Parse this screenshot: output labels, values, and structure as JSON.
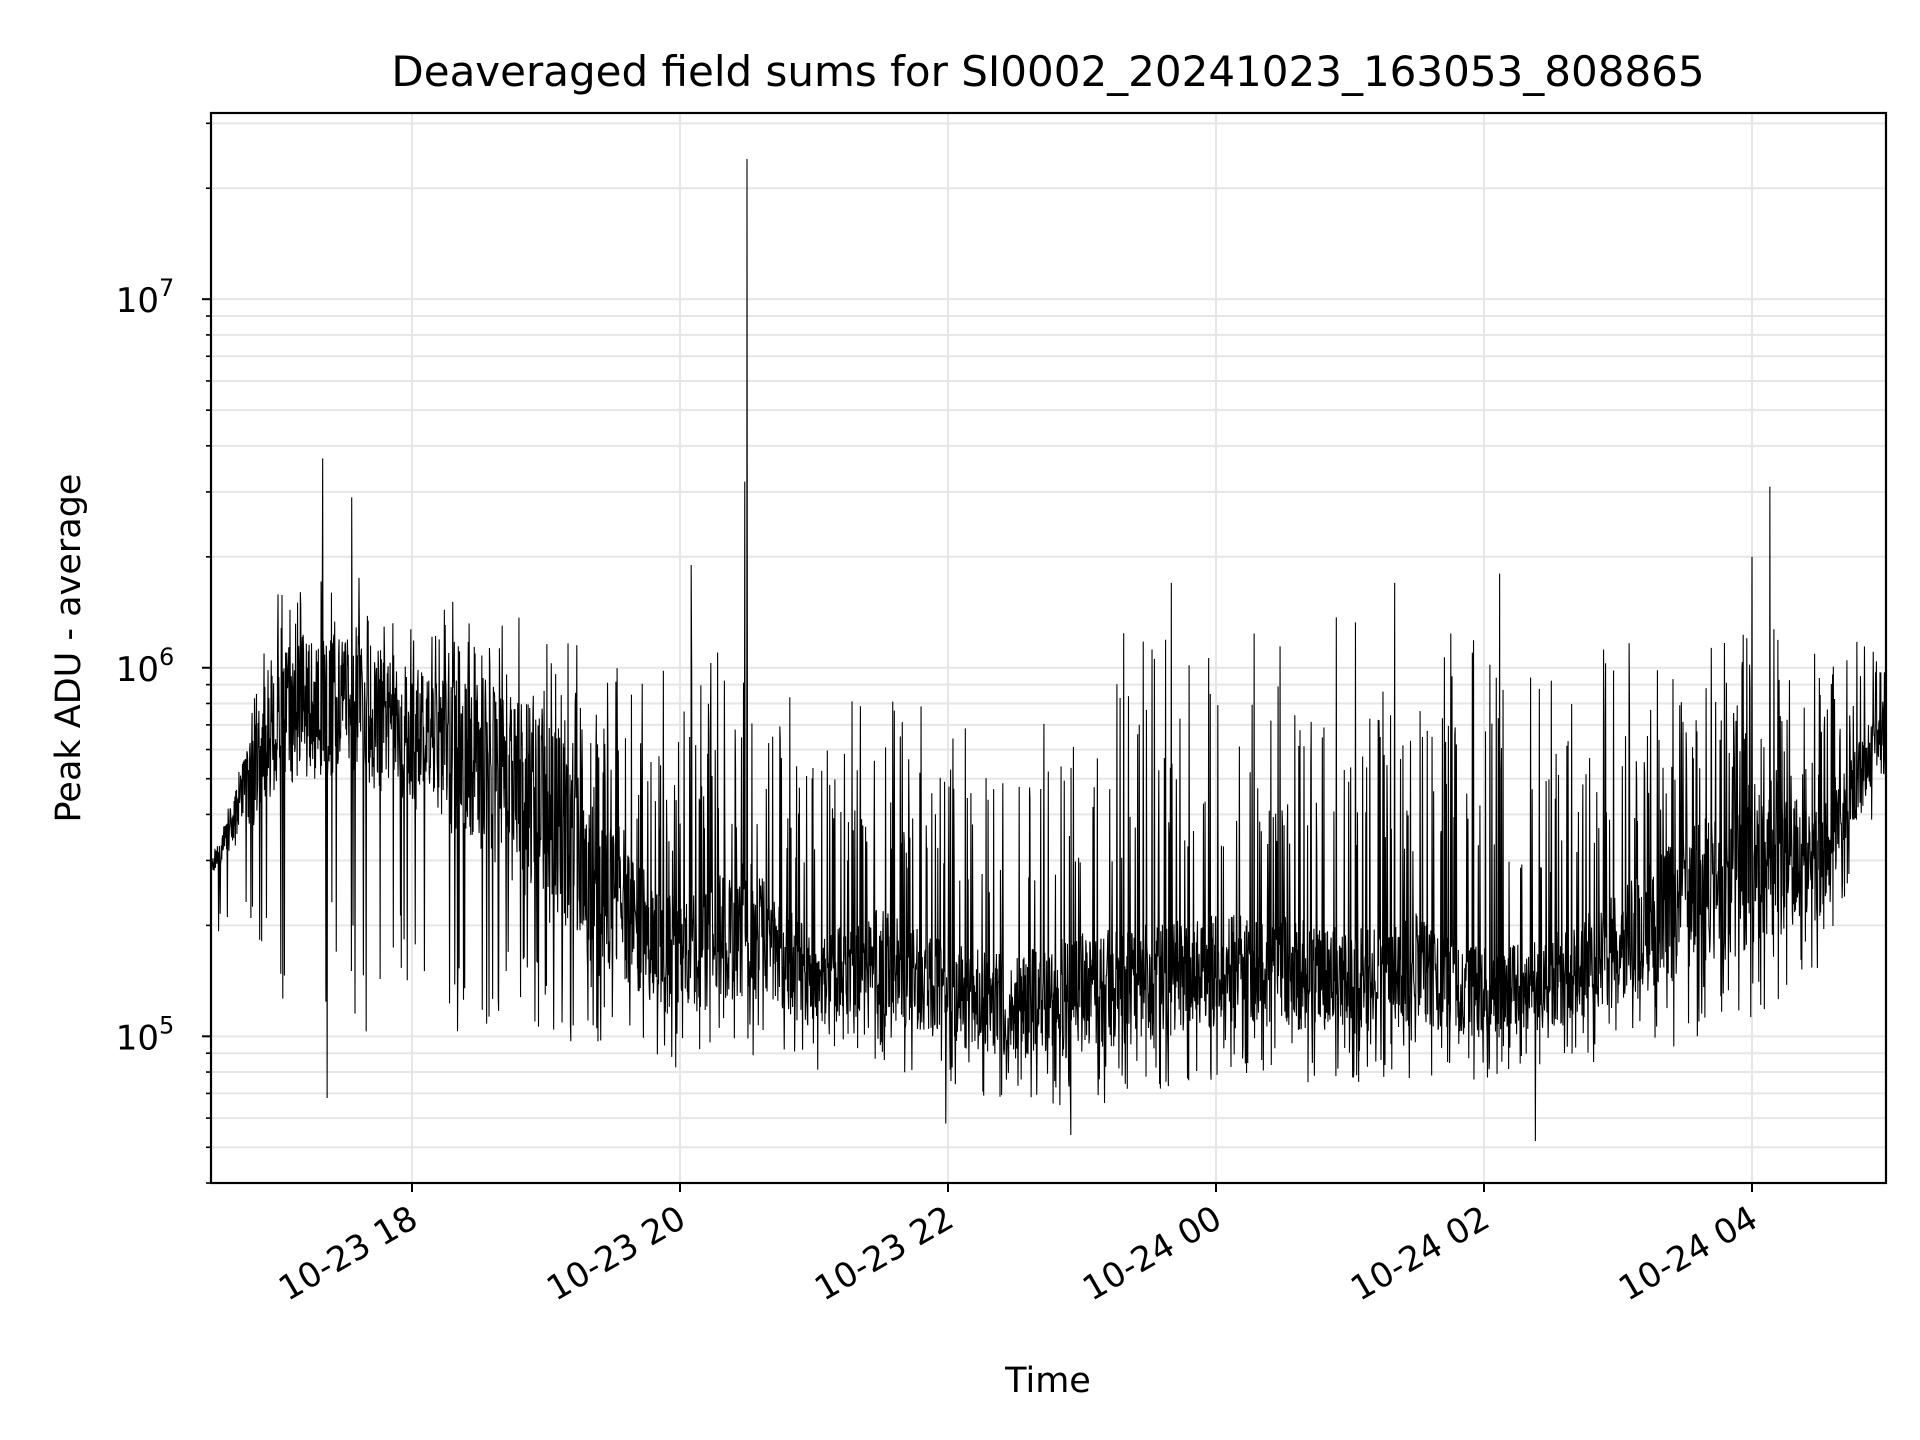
{
  "chart_data": {
    "type": "line",
    "title": "Deaveraged field sums for SI0002_20241023_163053_808865",
    "xlabel": "Time",
    "ylabel": "Peak ADU - average",
    "yscale": "log",
    "ylim": [
      40000,
      32000000
    ],
    "xlim": [
      "2024-10-23 16:30",
      "2024-10-24 05:00"
    ],
    "grid": true,
    "line_color": "#000000",
    "grid_color": "#e6e6e6",
    "x_ticks": [
      {
        "value": "2024-10-23 18:00",
        "label": "10-23 18"
      },
      {
        "value": "2024-10-23 20:00",
        "label": "10-23 20"
      },
      {
        "value": "2024-10-23 22:00",
        "label": "10-23 22"
      },
      {
        "value": "2024-10-24 00:00",
        "label": "10-24 00"
      },
      {
        "value": "2024-10-24 02:00",
        "label": "10-24 02"
      },
      {
        "value": "2024-10-24 04:00",
        "label": "10-24 04"
      }
    ],
    "y_ticks": [
      {
        "value": 100000,
        "base": "10",
        "exp": "5"
      },
      {
        "value": 1000000,
        "base": "10",
        "exp": "6"
      },
      {
        "value": 10000000,
        "base": "10",
        "exp": "7"
      }
    ],
    "series": [
      {
        "x": [
          "2024-10-23 16:30",
          "2024-10-23 17:00",
          "2024-10-23 17:30",
          "2024-10-23 18:00",
          "2024-10-23 18:30",
          "2024-10-23 19:00",
          "2024-10-23 19:30",
          "2024-10-23 20:00",
          "2024-10-23 20:30",
          "2024-10-23 21:00",
          "2024-10-23 21:30",
          "2024-10-23 22:00",
          "2024-10-23 22:30",
          "2024-10-23 23:00",
          "2024-10-23 23:30",
          "2024-10-24 00:00",
          "2024-10-24 00:30",
          "2024-10-24 01:00",
          "2024-10-24 01:30",
          "2024-10-24 02:00",
          "2024-10-24 02:30",
          "2024-10-24 03:00",
          "2024-10-24 03:30",
          "2024-10-24 04:00",
          "2024-10-24 04:30",
          "2024-10-24 05:00"
        ],
        "median": [
          280000,
          700000,
          800000,
          650000,
          550000,
          400000,
          220000,
          160000,
          200000,
          140000,
          160000,
          130000,
          120000,
          130000,
          140000,
          150000,
          150000,
          140000,
          150000,
          130000,
          140000,
          170000,
          230000,
          280000,
          300000,
          700000
        ],
        "high": [
          300000,
          1700000,
          1800000,
          1600000,
          1500000,
          1400000,
          1000000,
          1000000,
          1200000,
          900000,
          1000000,
          800000,
          600000,
          1400000,
          1200000,
          1400000,
          1300000,
          1500000,
          1200000,
          1300000,
          1000000,
          1200000,
          1300000,
          1300000,
          1300000,
          1100000
        ],
        "low": [
          200000,
          120000,
          100000,
          100000,
          95000,
          95000,
          85000,
          80000,
          85000,
          80000,
          85000,
          70000,
          65000,
          60000,
          70000,
          75000,
          75000,
          75000,
          75000,
          75000,
          80000,
          85000,
          95000,
          110000,
          150000,
          500000
        ],
        "peaks": [
          {
            "x": "2024-10-23 20:30",
            "y": 24000000
          },
          {
            "x": "2024-10-23 20:29",
            "y": 3200000
          },
          {
            "x": "2024-10-23 17:20",
            "y": 3700000
          },
          {
            "x": "2024-10-24 04:08",
            "y": 3100000
          },
          {
            "x": "2024-10-23 17:33",
            "y": 2900000
          },
          {
            "x": "2024-10-24 04:00",
            "y": 2000000
          },
          {
            "x": "2024-10-23 20:05",
            "y": 1900000
          },
          {
            "x": "2024-10-24 02:07",
            "y": 1800000
          },
          {
            "x": "2024-10-23 23:40",
            "y": 1700000
          },
          {
            "x": "2024-10-24 01:20",
            "y": 1700000
          }
        ],
        "dips": [
          {
            "x": "2024-10-23 17:22",
            "y": 68000
          },
          {
            "x": "2024-10-23 22:55",
            "y": 54000
          },
          {
            "x": "2024-10-24 02:23",
            "y": 52000
          },
          {
            "x": "2024-10-23 21:59",
            "y": 58000
          }
        ]
      }
    ]
  }
}
